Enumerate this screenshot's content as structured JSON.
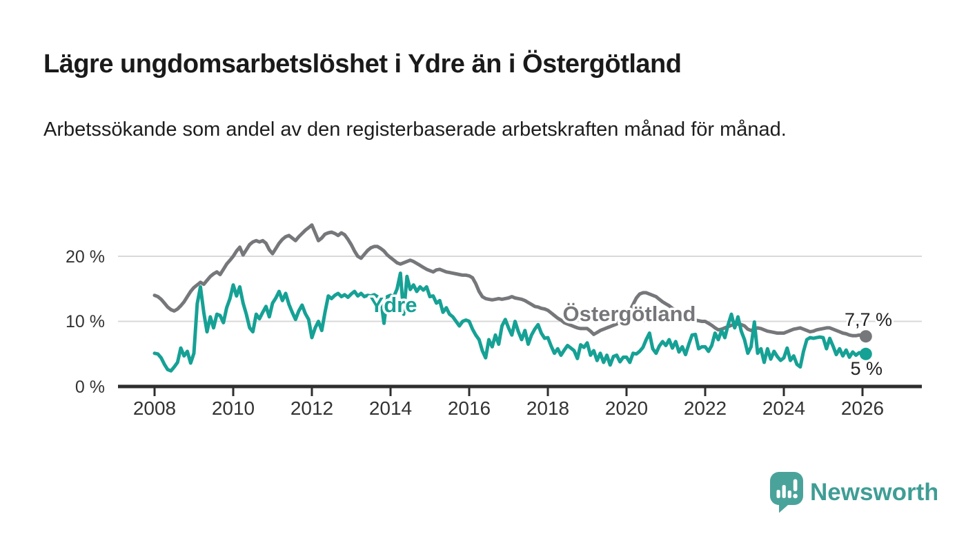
{
  "header": {
    "title": "Lägre ungdomsarbetslöshet i Ydre än i Östergötland",
    "subtitle": "Arbetssökande som andel av den registerbaserade arbetskraften månad för månad."
  },
  "chart_data": {
    "type": "line",
    "title": "Lägre ungdomsarbetslöshet i Ydre än i Östergötland",
    "unit": "%",
    "x_start": "2008-01",
    "x_end": "2026-02",
    "x_step": "1 month",
    "xlim": [
      2008,
      2026.2
    ],
    "ylim": [
      0,
      27
    ],
    "grid": "horizontal",
    "legend_position": "inline-labels",
    "x_tick_labels": [
      "2008",
      "2010",
      "2012",
      "2014",
      "2016",
      "2018",
      "2020",
      "2022",
      "2024",
      "2026"
    ],
    "y_ticks": [
      {
        "value": 0,
        "label": "0 %"
      },
      {
        "value": 10,
        "label": "10 %"
      },
      {
        "value": 20,
        "label": "20 %"
      }
    ],
    "series": [
      {
        "name": "Ydre",
        "color": "#16a195",
        "end_label": "5 %",
        "end_value": 5.0,
        "values": [
          5.1,
          5.0,
          4.4,
          3.4,
          2.6,
          2.4,
          3.0,
          3.7,
          5.9,
          4.7,
          5.4,
          3.6,
          5.1,
          12.7,
          15.3,
          11.4,
          8.4,
          10.7,
          9.0,
          11.1,
          10.9,
          9.8,
          12.1,
          13.5,
          15.6,
          13.9,
          15.3,
          12.8,
          11.1,
          9.0,
          8.4,
          11.1,
          10.4,
          11.4,
          12.3,
          10.7,
          12.8,
          13.6,
          14.6,
          13.2,
          14.3,
          12.6,
          11.4,
          10.3,
          11.6,
          12.5,
          11.2,
          10.3,
          7.5,
          9.0,
          10.0,
          8.6,
          11.4,
          13.9,
          13.5,
          14.0,
          14.3,
          13.8,
          14.1,
          13.7,
          14.2,
          14.6,
          13.9,
          14.3,
          13.8,
          14.0,
          13.9,
          14.1,
          13.8,
          13.5,
          9.7,
          13.8,
          14.0,
          13.8,
          15.0,
          17.4,
          11.1,
          16.9,
          14.9,
          15.6,
          14.6,
          15.3,
          14.8,
          15.3,
          13.8,
          13.9,
          12.8,
          13.2,
          11.4,
          12.1,
          11.1,
          10.7,
          10.0,
          9.3,
          10.0,
          10.2,
          10.0,
          8.8,
          7.9,
          7.2,
          5.5,
          4.4,
          7.2,
          6.1,
          7.9,
          6.5,
          9.3,
          10.3,
          9.0,
          7.9,
          10.0,
          8.4,
          7.2,
          8.6,
          6.5,
          7.9,
          8.8,
          9.5,
          8.2,
          7.4,
          7.5,
          6.2,
          5.1,
          5.8,
          4.8,
          5.6,
          6.3,
          5.9,
          5.5,
          4.3,
          6.4,
          6.0,
          6.7,
          4.8,
          5.5,
          4.0,
          5.1,
          3.7,
          4.8,
          3.3,
          4.6,
          4.8,
          3.8,
          4.5,
          4.5,
          3.7,
          5.1,
          5.0,
          5.4,
          6.0,
          7.2,
          8.2,
          5.8,
          5.1,
          6.2,
          6.9,
          6.3,
          7.2,
          5.9,
          6.9,
          5.3,
          6.1,
          4.9,
          6.5,
          7.9,
          8.0,
          5.8,
          6.1,
          6.1,
          5.4,
          6.3,
          8.2,
          7.2,
          8.6,
          7.5,
          9.5,
          11.1,
          9.0,
          10.7,
          8.5,
          7.2,
          5.1,
          6.1,
          9.9,
          5.1,
          5.8,
          3.7,
          5.8,
          4.2,
          5.4,
          4.6,
          4.0,
          4.4,
          5.9,
          4.0,
          4.7,
          3.4,
          3.0,
          5.4,
          7.2,
          7.5,
          7.4,
          7.5,
          7.6,
          7.5,
          5.8,
          7.4,
          6.2,
          4.9,
          5.8,
          4.7,
          5.6,
          4.5,
          5.3,
          4.8,
          5.2,
          5.1,
          5.0
        ]
      },
      {
        "name": "Östergötland",
        "color": "#76777a",
        "end_label": "7,7 %",
        "end_value": 7.7,
        "values": [
          14.0,
          13.8,
          13.4,
          12.8,
          12.2,
          11.8,
          11.6,
          11.9,
          12.4,
          13.0,
          13.8,
          14.6,
          15.2,
          15.6,
          16.0,
          15.7,
          16.3,
          16.9,
          17.3,
          17.6,
          17.2,
          18.0,
          18.8,
          19.4,
          20.0,
          20.8,
          21.4,
          20.2,
          21.0,
          21.8,
          22.2,
          22.4,
          22.2,
          22.4,
          22.0,
          21.0,
          20.4,
          21.2,
          22.0,
          22.6,
          23.0,
          23.2,
          22.8,
          22.4,
          23.0,
          23.5,
          24.0,
          24.4,
          24.8,
          23.6,
          22.4,
          22.8,
          23.4,
          23.6,
          23.7,
          23.5,
          23.2,
          23.6,
          23.3,
          22.6,
          21.8,
          20.8,
          20.0,
          19.7,
          20.3,
          20.9,
          21.3,
          21.5,
          21.5,
          21.2,
          20.8,
          20.2,
          19.8,
          19.4,
          19.0,
          18.8,
          19.0,
          19.2,
          19.4,
          19.2,
          18.9,
          18.6,
          18.3,
          18.0,
          17.8,
          17.6,
          17.9,
          18.0,
          17.8,
          17.6,
          17.5,
          17.4,
          17.3,
          17.2,
          17.1,
          17.1,
          17.0,
          16.7,
          15.8,
          14.6,
          13.8,
          13.5,
          13.4,
          13.3,
          13.4,
          13.5,
          13.4,
          13.5,
          13.6,
          13.8,
          13.6,
          13.5,
          13.4,
          13.2,
          12.9,
          12.6,
          12.3,
          12.2,
          12.0,
          11.9,
          11.7,
          11.3,
          10.9,
          10.5,
          10.2,
          9.8,
          9.6,
          9.4,
          9.2,
          9.0,
          8.9,
          8.9,
          8.9,
          8.5,
          8.0,
          8.3,
          8.6,
          8.8,
          9.0,
          9.2,
          9.4,
          9.6,
          9.9,
          10.3,
          10.8,
          11.6,
          12.6,
          13.6,
          14.2,
          14.4,
          14.4,
          14.2,
          14.0,
          13.8,
          13.4,
          13.0,
          12.7,
          12.4,
          12.0,
          11.7,
          11.4,
          11.1,
          10.9,
          10.7,
          10.4,
          10.2,
          10.1,
          10.0,
          10.0,
          9.7,
          9.4,
          9.0,
          8.7,
          8.8,
          9.0,
          9.2,
          9.4,
          9.5,
          9.6,
          9.5,
          9.3,
          8.8,
          8.6,
          8.8,
          9.0,
          8.9,
          8.7,
          8.5,
          8.4,
          8.3,
          8.2,
          8.2,
          8.2,
          8.4,
          8.6,
          8.8,
          8.9,
          9.0,
          8.8,
          8.6,
          8.4,
          8.5,
          8.7,
          8.8,
          8.9,
          9.0,
          9.0,
          8.8,
          8.6,
          8.4,
          8.2,
          8.1,
          7.9,
          7.8,
          7.8,
          7.9,
          7.8,
          7.7
        ]
      }
    ]
  },
  "footer": {
    "brand": "Newsworthy",
    "brand_icon": "newsworthy-speech-bubble-barchart-icon",
    "brand_color": "#4aa39b",
    "wordmark_color": "#3f9d95"
  }
}
